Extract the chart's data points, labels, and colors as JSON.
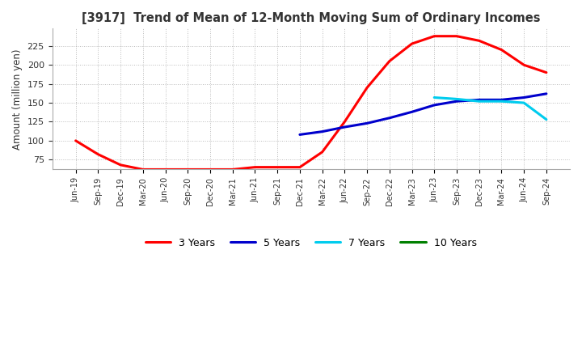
{
  "title": "[3917]  Trend of Mean of 12-Month Moving Sum of Ordinary Incomes",
  "ylabel": "Amount (million yen)",
  "ylim": [
    62,
    248
  ],
  "yticks": [
    75,
    100,
    125,
    150,
    175,
    200,
    225
  ],
  "background_color": "#ffffff",
  "grid_color": "#aaaaaa",
  "line_colors": {
    "3 Years": "#ff0000",
    "5 Years": "#0000cc",
    "7 Years": "#00ccee",
    "10 Years": "#008000"
  },
  "x_labels": [
    "Jun-19",
    "Sep-19",
    "Dec-19",
    "Mar-20",
    "Jun-20",
    "Sep-20",
    "Dec-20",
    "Mar-21",
    "Jun-21",
    "Sep-21",
    "Dec-21",
    "Mar-22",
    "Jun-22",
    "Sep-22",
    "Dec-22",
    "Mar-23",
    "Jun-23",
    "Sep-23",
    "Dec-23",
    "Mar-24",
    "Jun-24",
    "Sep-24"
  ],
  "series": {
    "3 Years": [
      100,
      82,
      68,
      62,
      62,
      62,
      62,
      62,
      65,
      65,
      65,
      85,
      125,
      170,
      205,
      228,
      238,
      238,
      232,
      220,
      200,
      190
    ],
    "5 Years": [
      null,
      null,
      null,
      null,
      null,
      null,
      null,
      null,
      null,
      null,
      108,
      112,
      118,
      123,
      130,
      138,
      147,
      152,
      154,
      154,
      157,
      162
    ],
    "7 Years": [
      null,
      null,
      null,
      null,
      null,
      null,
      null,
      null,
      null,
      null,
      null,
      null,
      null,
      null,
      null,
      null,
      157,
      155,
      152,
      152,
      150,
      128
    ],
    "10 Years": [
      null,
      null,
      null,
      null,
      null,
      null,
      null,
      null,
      null,
      null,
      null,
      null,
      null,
      null,
      null,
      null,
      null,
      null,
      null,
      null,
      null,
      null
    ]
  }
}
